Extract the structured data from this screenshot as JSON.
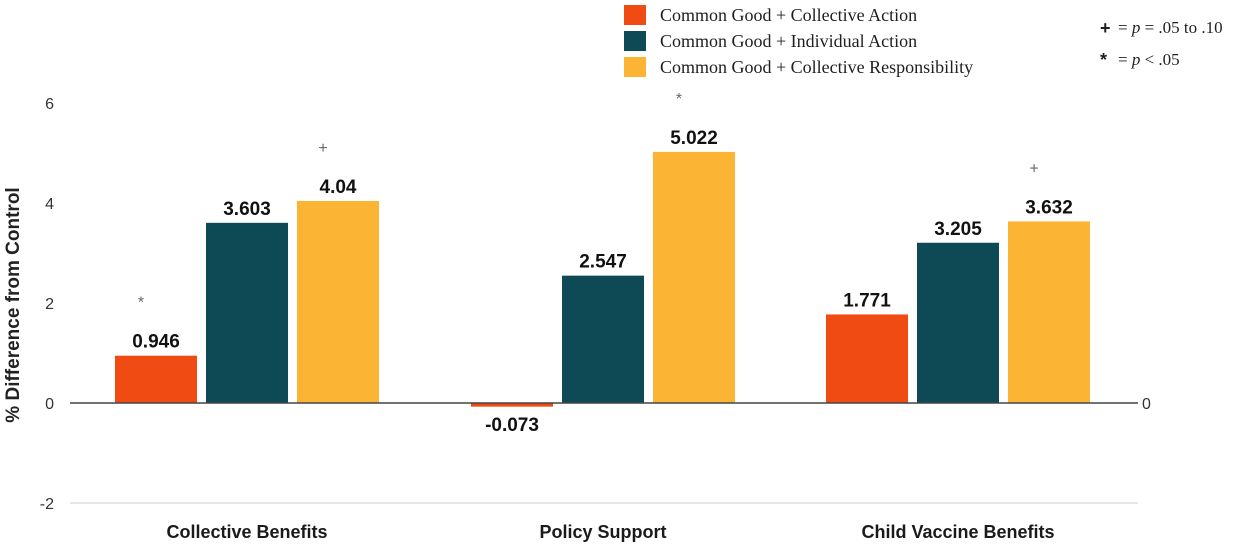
{
  "legend": {
    "items": [
      {
        "label": "Common Good + Collective Action",
        "color": "#f04b12"
      },
      {
        "label": "Common Good + Individual Action",
        "color": "#0d4a55"
      },
      {
        "label": "Common Good + Collective Responsibility",
        "color": "#fbb433"
      }
    ]
  },
  "significance_note": {
    "plus": {
      "symbol": "+",
      "text_prefix": "= ",
      "p": "p",
      "text_suffix": " = .05 to .10"
    },
    "star": {
      "symbol": "*",
      "text_prefix": "= ",
      "p": "p",
      "text_suffix": " < .05"
    }
  },
  "chart_data": {
    "type": "bar",
    "ylabel": "% Difference from Control",
    "xlabel": "",
    "ylim": [
      -2,
      6
    ],
    "yticks": [
      6,
      4,
      2,
      0,
      -2
    ],
    "right_axis_tick": "0",
    "grid": false,
    "categories": [
      "Collective Benefits",
      "Policy Support",
      "Child Vaccine Benefits"
    ],
    "series": [
      {
        "name": "Common Good + Collective Action",
        "color": "#f04b12",
        "values": [
          0.946,
          -0.073,
          1.771
        ],
        "labels": [
          "0.946",
          "-0.073",
          "1.771"
        ],
        "significance": [
          "*",
          "",
          ""
        ]
      },
      {
        "name": "Common Good + Individual Action",
        "color": "#0d4a55",
        "values": [
          3.603,
          2.547,
          3.205
        ],
        "labels": [
          "3.603",
          "2.547",
          "3.205"
        ],
        "significance": [
          "",
          "",
          ""
        ]
      },
      {
        "name": "Common Good + Collective Responsibility",
        "color": "#fbb433",
        "values": [
          4.04,
          5.022,
          3.632
        ],
        "labels": [
          "4.04",
          "5.022",
          "3.632"
        ],
        "significance": [
          "+",
          "*",
          "+"
        ]
      }
    ]
  }
}
